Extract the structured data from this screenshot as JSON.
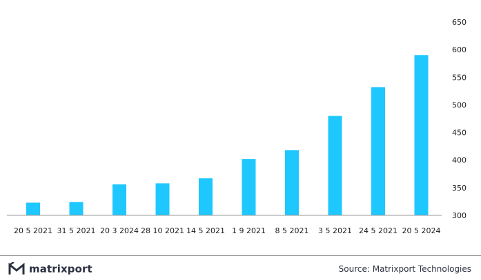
{
  "brand": {
    "name": "matrixport",
    "logo_icon": "matrixport-logo-icon"
  },
  "source": "Source: Matrixport Technologies",
  "colors": {
    "bar": "#1ec8ff",
    "axis": "#9a9a9a",
    "text": "#1a1a1a"
  },
  "chart_data": {
    "type": "bar",
    "title": "",
    "xlabel": "",
    "ylabel": "",
    "categories": [
      "20 5 2021",
      "31 5 2021",
      "20 3 2024",
      "28 10 2021",
      "14 5 2021",
      "1 9 2021",
      "8 5 2021",
      "3 5 2021",
      "24 5 2021",
      "20 5 2024"
    ],
    "values": [
      323,
      324,
      356,
      358,
      367,
      402,
      418,
      480,
      532,
      590
    ],
    "ylim": [
      300,
      650
    ],
    "yticks": [
      300,
      350,
      400,
      450,
      500,
      550,
      600,
      650
    ],
    "y_axis_side": "right",
    "grid": false,
    "legend": "none"
  }
}
